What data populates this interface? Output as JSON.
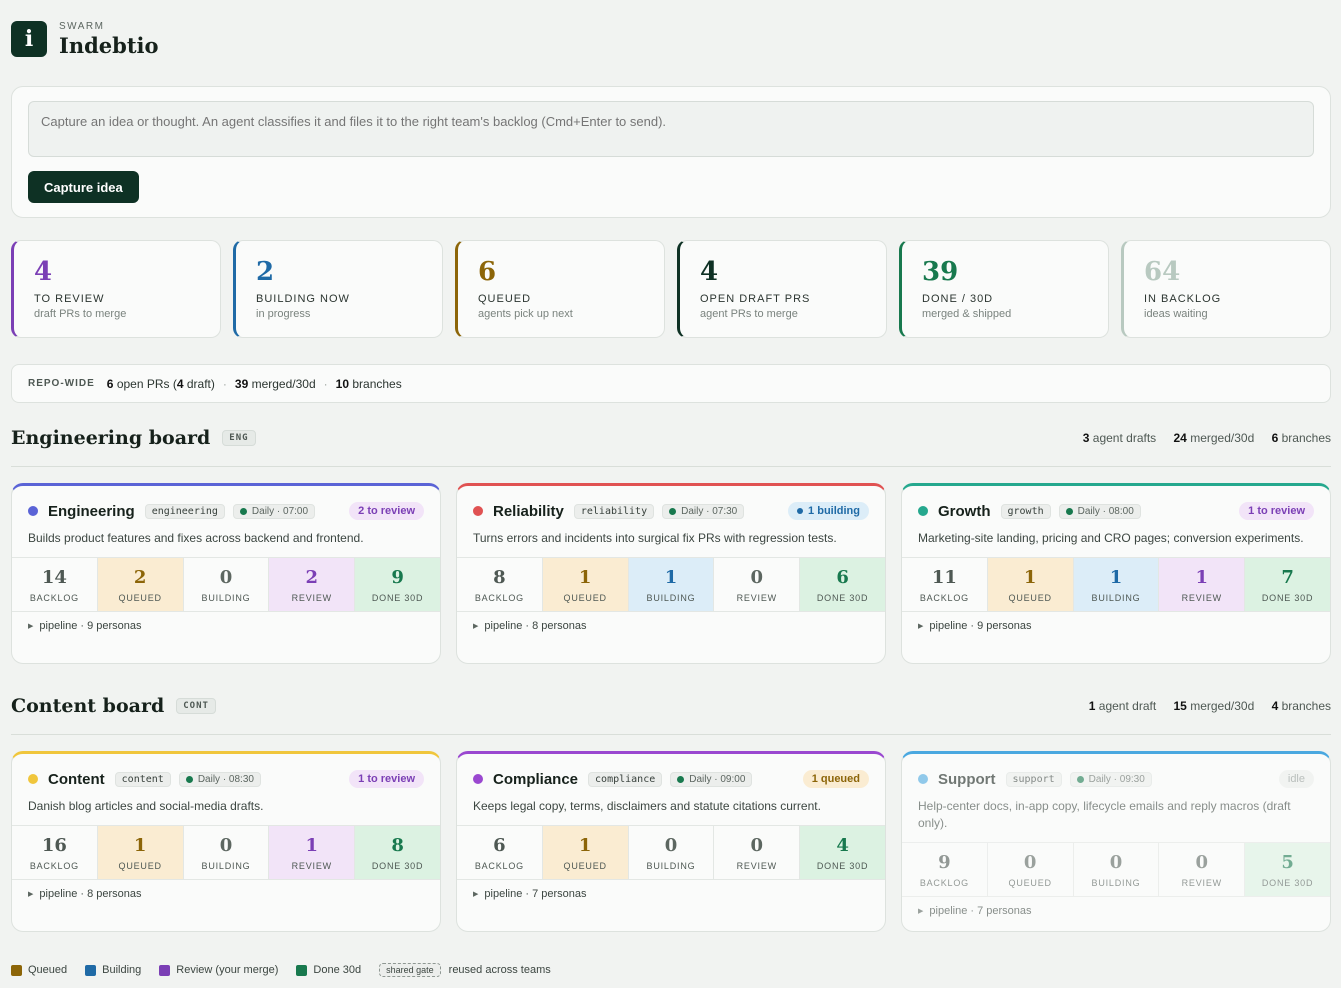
{
  "brand": {
    "kicker": "SWARM",
    "name": "Indebtio",
    "logo_glyph": "i"
  },
  "capture": {
    "placeholder": "Capture an idea or thought. An agent classifies it and files it to the right team's backlog (Cmd+Enter to send).",
    "button": "Capture idea"
  },
  "stats": [
    {
      "value": "4",
      "label": "TO REVIEW",
      "sub": "draft PRs to merge",
      "color": "#7b3fb5"
    },
    {
      "value": "2",
      "label": "BUILDING NOW",
      "sub": "in progress",
      "color": "#1f6aa6"
    },
    {
      "value": "6",
      "label": "QUEUED",
      "sub": "agents pick up next",
      "color": "#8c6508"
    },
    {
      "value": "4",
      "label": "OPEN DRAFT PRS",
      "sub": "agent PRs to merge",
      "color": "#0e3124"
    },
    {
      "value": "39",
      "label": "DONE / 30D",
      "sub": "merged & shipped",
      "color": "#18794e"
    },
    {
      "value": "64",
      "label": "IN BACKLOG",
      "sub": "ideas waiting",
      "color": "#b8c9c0"
    }
  ],
  "repo": {
    "kicker": "REPO-WIDE",
    "open_prs": "6",
    "open_prs_text": "open PRs (",
    "drafts": "4",
    "drafts_text": "draft)",
    "merged": "39",
    "merged_text": "merged/30d",
    "branches": "10",
    "branches_text": "branches"
  },
  "boards": [
    {
      "title": "Engineering board",
      "tag": "ENG",
      "meta": {
        "drafts": "3",
        "drafts_text": "agent drafts",
        "merged": "24",
        "merged_text": "merged/30d",
        "branches": "6",
        "branches_text": "branches"
      }
    },
    {
      "title": "Content board",
      "tag": "CONT",
      "meta": {
        "drafts": "1",
        "drafts_text": "agent draft",
        "merged": "15",
        "merged_text": "merged/30d",
        "branches": "4",
        "branches_text": "branches"
      }
    }
  ],
  "cell_labels": {
    "backlog": "BACKLOG",
    "queued": "QUEUED",
    "building": "BUILDING",
    "review": "REVIEW",
    "done": "DONE 30D"
  },
  "teams": [
    {
      "name": "Engineering",
      "slug": "engineering",
      "schedule": "Daily · 07:00",
      "pill": "2 to review",
      "color": "#5a63d6",
      "desc": "Builds product features and fixes across backend and frontend.",
      "backlog": "14",
      "queued": "2",
      "building": "0",
      "review": "2",
      "done": "9",
      "pipeline": "pipeline · 9 personas"
    },
    {
      "name": "Reliability",
      "slug": "reliability",
      "schedule": "Daily · 07:30",
      "pill": "1 building",
      "color": "#e05252",
      "desc": "Turns errors and incidents into surgical fix PRs with regression tests.",
      "backlog": "8",
      "queued": "1",
      "building": "1",
      "review": "0",
      "done": "6",
      "pipeline": "pipeline · 8 personas"
    },
    {
      "name": "Growth",
      "slug": "growth",
      "schedule": "Daily · 08:00",
      "pill": "1 to review",
      "color": "#25a88e",
      "desc": "Marketing-site landing, pricing and CRO pages; conversion experiments.",
      "backlog": "11",
      "queued": "1",
      "building": "1",
      "review": "1",
      "done": "7",
      "pipeline": "pipeline · 9 personas"
    },
    {
      "name": "Content",
      "slug": "content",
      "schedule": "Daily · 08:30",
      "pill": "1 to review",
      "color": "#f0c63c",
      "desc": "Danish blog articles and social-media drafts.",
      "backlog": "16",
      "queued": "1",
      "building": "0",
      "review": "1",
      "done": "8",
      "pipeline": "pipeline · 8 personas"
    },
    {
      "name": "Compliance",
      "slug": "compliance",
      "schedule": "Daily · 09:00",
      "pill": "1 queued",
      "color": "#9a48d0",
      "desc": "Keeps legal copy, terms, disclaimers and statute citations current.",
      "backlog": "6",
      "queued": "1",
      "building": "0",
      "review": "0",
      "done": "4",
      "pipeline": "pipeline · 7 personas"
    },
    {
      "name": "Support",
      "slug": "support",
      "schedule": "Daily · 09:30",
      "pill": "idle",
      "color": "#4aa8e0",
      "desc": "Help-center docs, in-app copy, lifecycle emails and reply macros (draft only).",
      "backlog": "9",
      "queued": "0",
      "building": "0",
      "review": "0",
      "done": "5",
      "pipeline": "pipeline · 7 personas"
    }
  ],
  "legend": {
    "queued": "Queued",
    "building": "Building",
    "review": "Review (your merge)",
    "done": "Done 30d",
    "gate": "shared gate",
    "gate_text": "reused across teams",
    "colors": {
      "queued": "#8c6508",
      "building": "#1f6aa6",
      "review": "#7b3fb5",
      "done": "#18794e"
    }
  }
}
